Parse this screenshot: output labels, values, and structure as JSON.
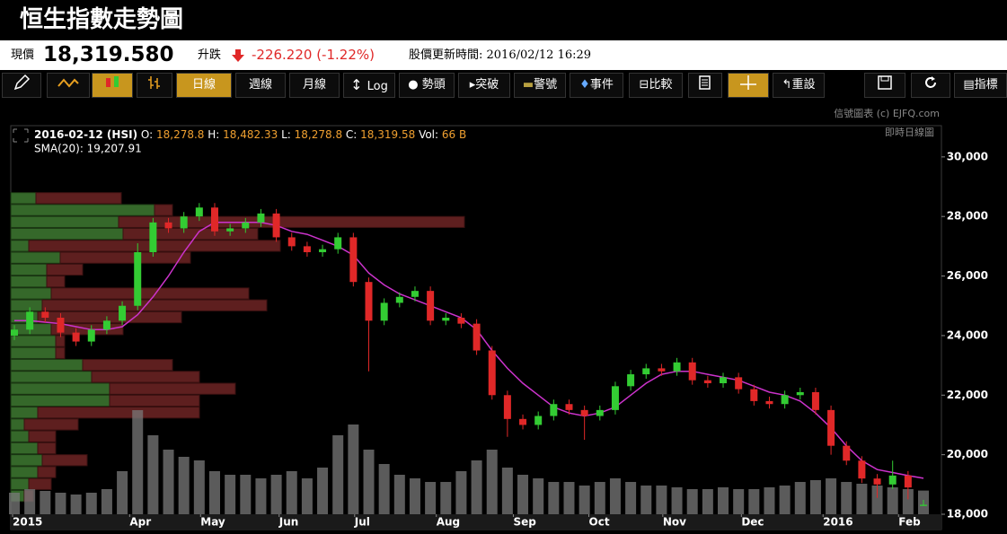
{
  "header": {
    "title": "恒生指數走勢圖"
  },
  "quote": {
    "price_label": "現價",
    "price": "18,319.580",
    "change_label": "升跌",
    "change": "-226.220 (-1.22%)",
    "update": "股價更新時間: 2016/02/12 16:29"
  },
  "toolbar": {
    "buttons": [
      "日線",
      "週線",
      "月線",
      "Log",
      "勢頭",
      "突破",
      "警號",
      "事件",
      "比較",
      "重設",
      "指標"
    ]
  },
  "chart_data": {
    "type": "candlestick",
    "copyright": "信號圖表 (c) EJFQ.com",
    "mode": "即時日線圖",
    "legend_line": {
      "date": "2016-02-12 (HSI)",
      "o_label": "O:",
      "o": "18,278.8",
      "h_label": "H:",
      "h": "18,482.33",
      "l_label": "L:",
      "l": "18,278.8",
      "c_label": "C:",
      "c": "18,319.58",
      "vol_label": "Vol:",
      "vol": "66 B",
      "sma": "SMA(20): 19,207.91"
    },
    "up_color": "#33cc33",
    "down_color": "#e02828",
    "sma_color": "#cc33cc",
    "volume_color": "#7a7a7a",
    "profile_up_color": "#35682a",
    "profile_down_color": "#5e1f1f",
    "xlim": [
      0,
      59
    ],
    "xticks": [
      {
        "value": 0,
        "label": "2015"
      },
      {
        "value": 7.6,
        "label": "Apr"
      },
      {
        "value": 12.2,
        "label": "May"
      },
      {
        "value": 17.3,
        "label": "Jun"
      },
      {
        "value": 22.2,
        "label": "Jul"
      },
      {
        "value": 27.5,
        "label": "Aug"
      },
      {
        "value": 32.5,
        "label": "Sep"
      },
      {
        "value": 37.4,
        "label": "Oct"
      },
      {
        "value": 42.2,
        "label": "Nov"
      },
      {
        "value": 47.3,
        "label": "Dec"
      },
      {
        "value": 52.6,
        "label": "2016"
      },
      {
        "value": 57.5,
        "label": "Feb"
      }
    ],
    "ylim": [
      18000,
      31050
    ],
    "yticks": [
      {
        "value": 18000,
        "label": "18,000"
      },
      {
        "value": 20000,
        "label": "20,000"
      },
      {
        "value": 22000,
        "label": "22,000"
      },
      {
        "value": 24000,
        "label": "24,000"
      },
      {
        "value": 26000,
        "label": "26,000"
      },
      {
        "value": 28000,
        "label": "28,000"
      },
      {
        "value": 30000,
        "label": "30,000"
      }
    ],
    "grid": false,
    "ohlc": {
      "open": [
        24000,
        24200,
        24800,
        24600,
        24100,
        23800,
        24200,
        24500,
        25000,
        26800,
        27800,
        27600,
        28000,
        28300,
        27500,
        27600,
        27800,
        28100,
        27300,
        27000,
        26800,
        26900,
        27300,
        25800,
        24500,
        25100,
        25300,
        25500,
        24500,
        24600,
        24400,
        23500,
        22000,
        21200,
        21000,
        21300,
        21700,
        21500,
        21300,
        21500,
        22300,
        22700,
        22900,
        22800,
        23100,
        22500,
        22400,
        22600,
        22200,
        21800,
        21700,
        22000,
        22100,
        21500,
        20300,
        19800,
        19200,
        19000,
        19300,
        18278.8
      ],
      "high": [
        24350,
        24950,
        24950,
        24750,
        24250,
        24350,
        24650,
        25150,
        27100,
        27950,
        27950,
        28150,
        28450,
        28450,
        27750,
        27950,
        28250,
        28250,
        27450,
        27150,
        27050,
        27450,
        27450,
        25950,
        25250,
        25450,
        25650,
        25650,
        24750,
        24750,
        24550,
        23650,
        22150,
        21350,
        21450,
        21850,
        21850,
        21650,
        21650,
        22450,
        22850,
        23050,
        23050,
        23250,
        23250,
        22650,
        22750,
        22750,
        22350,
        21950,
        22150,
        22250,
        22250,
        21650,
        20450,
        19950,
        19350,
        19800,
        19450,
        18482.33
      ],
      "low": [
        23850,
        24050,
        24450,
        23950,
        23650,
        23650,
        24050,
        24350,
        24850,
        26650,
        27450,
        27450,
        27850,
        27350,
        27350,
        27450,
        27650,
        27150,
        26850,
        26650,
        26650,
        26750,
        25650,
        22800,
        24350,
        24950,
        25150,
        24350,
        24350,
        24250,
        23350,
        21850,
        20600,
        20850,
        20850,
        21150,
        21350,
        20500,
        21150,
        21350,
        22150,
        22550,
        22650,
        22650,
        22350,
        22250,
        22250,
        22050,
        21650,
        21550,
        21550,
        21850,
        21350,
        20000,
        19650,
        19050,
        18550,
        18850,
        18500,
        18278.8
      ],
      "close": [
        24200,
        24800,
        24600,
        24100,
        23800,
        24200,
        24500,
        25000,
        26800,
        27800,
        27600,
        28000,
        28300,
        27500,
        27600,
        27800,
        28100,
        27300,
        27000,
        26800,
        26900,
        27300,
        25800,
        24500,
        25100,
        25300,
        25500,
        24500,
        24600,
        24400,
        23500,
        22000,
        21200,
        21000,
        21300,
        21700,
        21500,
        21300,
        21500,
        22300,
        22700,
        22900,
        22800,
        23100,
        22500,
        22400,
        22600,
        22200,
        21800,
        21700,
        22000,
        22100,
        21500,
        20300,
        19800,
        19200,
        19000,
        19300,
        18900,
        18319.58
      ]
    },
    "sma": [
      24500,
      24500,
      24450,
      24400,
      24300,
      24200,
      24200,
      24300,
      24700,
      25300,
      26000,
      26800,
      27500,
      27800,
      27800,
      27800,
      27800,
      27700,
      27500,
      27400,
      27200,
      27000,
      26700,
      26100,
      25700,
      25400,
      25200,
      25000,
      24800,
      24600,
      24200,
      23500,
      22900,
      22400,
      22000,
      21600,
      21400,
      21300,
      21400,
      21600,
      22000,
      22400,
      22700,
      22800,
      22800,
      22700,
      22600,
      22500,
      22300,
      22100,
      22000,
      21800,
      21400,
      20900,
      20300,
      19800,
      19500,
      19400,
      19300,
      19207.91
    ],
    "volume_ylim": [
      0,
      400
    ],
    "volume": [
      60,
      70,
      65,
      60,
      55,
      60,
      70,
      120,
      290,
      220,
      180,
      160,
      150,
      120,
      110,
      110,
      100,
      110,
      120,
      100,
      130,
      220,
      250,
      180,
      140,
      110,
      100,
      90,
      90,
      120,
      150,
      180,
      130,
      110,
      100,
      90,
      90,
      80,
      90,
      100,
      90,
      80,
      80,
      75,
      70,
      70,
      75,
      70,
      70,
      75,
      80,
      90,
      95,
      100,
      90,
      85,
      80,
      75,
      70,
      66
    ],
    "profile_xlim": [
      0,
      1036
    ],
    "profile_bins": [
      18400,
      18800,
      19200,
      19600,
      20000,
      20400,
      20800,
      21200,
      21600,
      22000,
      22400,
      22800,
      23200,
      23600,
      24000,
      24400,
      24800,
      25200,
      25600,
      26000,
      26400,
      26800,
      27200,
      27600,
      28000,
      28400,
      28800
    ],
    "profile_up": [
      15,
      20,
      30,
      35,
      30,
      20,
      15,
      30,
      110,
      110,
      90,
      80,
      50,
      50,
      45,
      30,
      35,
      45,
      40,
      40,
      55,
      20,
      125,
      120,
      160,
      28
    ],
    "profile_down": [
      10,
      25,
      20,
      50,
      20,
      30,
      60,
      180,
      100,
      140,
      120,
      100,
      10,
      10,
      80,
      160,
      250,
      220,
      20,
      40,
      145,
      280,
      150,
      385,
      20,
      95
    ]
  }
}
